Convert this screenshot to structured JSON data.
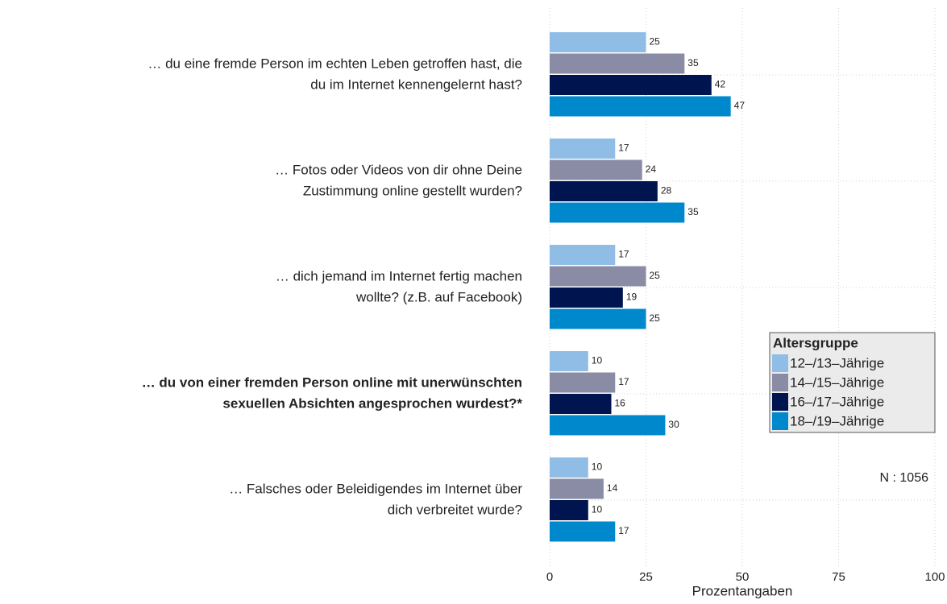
{
  "chart_data": {
    "type": "hbar-grouped",
    "categories": [
      [
        "… du eine fremde Person im echten Leben getroffen hast, die",
        "du im Internet kennengelernt hast?"
      ],
      [
        "… Fotos oder Videos von dir ohne Deine",
        "Zustimmung online gestellt wurden?"
      ],
      [
        "… dich jemand im Internet fertig machen",
        "wollte? (z.B. auf Facebook)"
      ],
      [
        "… du von einer fremden Person online mit unerwünschten",
        "sexuellen Absichten angesprochen wurdest?*"
      ],
      [
        "… Falsches oder Beleidigendes im Internet über",
        "dich verbreitet wurde?"
      ]
    ],
    "bold": [
      false,
      false,
      false,
      true,
      false
    ],
    "series": [
      {
        "name": "12–/13–Jährige",
        "color": "#8fbde6",
        "values": [
          25,
          17,
          17,
          10,
          10
        ]
      },
      {
        "name": "14–/15–Jährige",
        "color": "#8a8ca6",
        "values": [
          35,
          24,
          25,
          17,
          14
        ]
      },
      {
        "name": "16–/17–Jährige",
        "color": "#00154f",
        "values": [
          42,
          28,
          19,
          16,
          10
        ]
      },
      {
        "name": "18–/19–Jährige",
        "color": "#0088cc",
        "values": [
          47,
          35,
          25,
          30,
          17
        ]
      }
    ],
    "xlim": [
      0,
      100
    ],
    "xticks": [
      0,
      25,
      50,
      75,
      100
    ],
    "grid": true,
    "xlabel": "Prozentangaben",
    "legend_title": "Altersgruppe",
    "annotation": "N : 1056"
  }
}
